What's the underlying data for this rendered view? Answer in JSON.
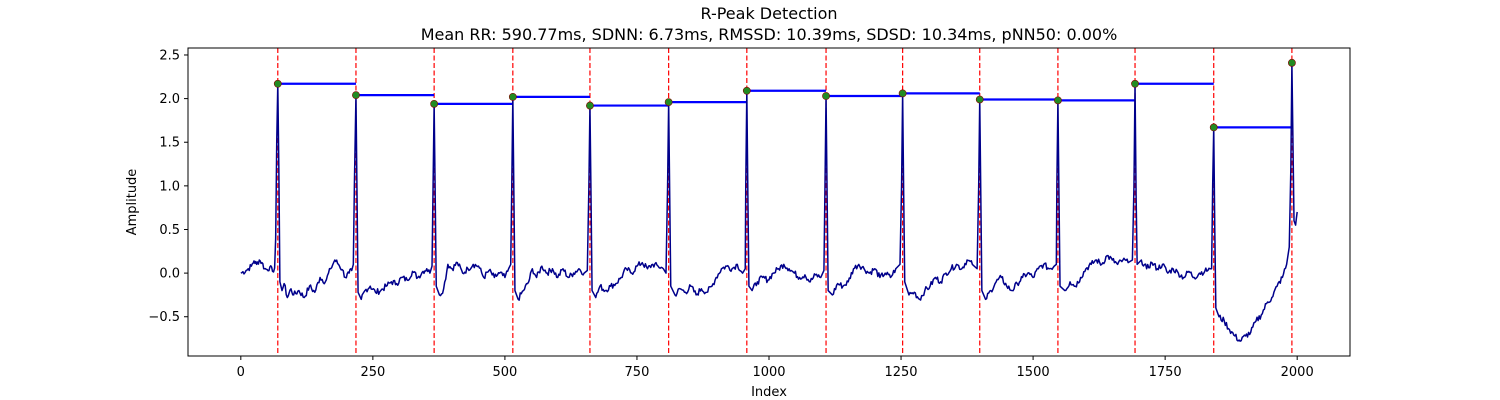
{
  "chart_data": {
    "type": "line",
    "title": "R-Peak Detection",
    "subtitle": "Mean RR: 590.77ms, SDNN: 6.73ms, RMSSD: 10.39ms, SDSD: 10.34ms, pNN50: 0.00%",
    "xlabel": "Index",
    "ylabel": "Amplitude",
    "xlim": [
      -100,
      2100
    ],
    "ylim": [
      -0.95,
      2.58
    ],
    "xticks": [
      0,
      250,
      500,
      750,
      1000,
      1250,
      1500,
      1750,
      2000
    ],
    "yticks": [
      -0.5,
      0.0,
      0.5,
      1.0,
      1.5,
      2.0,
      2.5
    ],
    "xtick_labels": [
      "0",
      "250",
      "500",
      "750",
      "1000",
      "1250",
      "1500",
      "1750",
      "2000"
    ],
    "ytick_labels": [
      "−0.5",
      "0.0",
      "0.5",
      "1.0",
      "1.5",
      "2.0",
      "2.5"
    ],
    "grid": false,
    "signal_color": "#00008b",
    "peak_marker_color": "#228b22",
    "peak_line_color": "#ff0000",
    "rr_line_color": "#0000ff",
    "peaks": [
      {
        "x": 70,
        "y": 2.17
      },
      {
        "x": 218,
        "y": 2.04
      },
      {
        "x": 366,
        "y": 1.94
      },
      {
        "x": 515,
        "y": 2.02
      },
      {
        "x": 661,
        "y": 1.92
      },
      {
        "x": 810,
        "y": 1.96
      },
      {
        "x": 958,
        "y": 2.09
      },
      {
        "x": 1108,
        "y": 2.03
      },
      {
        "x": 1253,
        "y": 2.06
      },
      {
        "x": 1399,
        "y": 1.99
      },
      {
        "x": 1547,
        "y": 1.98
      },
      {
        "x": 1693,
        "y": 2.17
      },
      {
        "x": 1842,
        "y": 1.67
      },
      {
        "x": 1990,
        "y": 2.41
      }
    ],
    "signal_baseline": [
      [
        0,
        0.0
      ],
      [
        10,
        0.03
      ],
      [
        20,
        0.08
      ],
      [
        25,
        0.14
      ],
      [
        30,
        0.1
      ],
      [
        35,
        0.15
      ],
      [
        40,
        0.12
      ],
      [
        45,
        0.05
      ],
      [
        50,
        0.04
      ],
      [
        55,
        0.07
      ],
      [
        60,
        0.02
      ],
      [
        64,
        0.06
      ],
      [
        66,
        0.4
      ],
      [
        68,
        1.5
      ],
      [
        70,
        2.17
      ],
      [
        72,
        1.2
      ],
      [
        74,
        -0.1
      ],
      [
        78,
        -0.2
      ],
      [
        82,
        -0.12
      ],
      [
        88,
        -0.28
      ],
      [
        95,
        -0.18
      ],
      [
        100,
        -0.25
      ],
      [
        110,
        -0.2
      ],
      [
        120,
        -0.28
      ],
      [
        130,
        -0.15
      ],
      [
        140,
        -0.22
      ],
      [
        150,
        -0.05
      ],
      [
        160,
        -0.1
      ],
      [
        170,
        0.05
      ],
      [
        178,
        0.15
      ],
      [
        185,
        0.1
      ],
      [
        192,
        0.04
      ],
      [
        198,
        -0.05
      ],
      [
        205,
        0.0
      ],
      [
        210,
        0.03
      ],
      [
        213,
        0.1
      ],
      [
        215,
        1.0
      ],
      [
        218,
        2.04
      ],
      [
        220,
        0.9
      ],
      [
        222,
        -0.22
      ],
      [
        228,
        -0.3
      ],
      [
        235,
        -0.2
      ],
      [
        245,
        -0.15
      ],
      [
        255,
        -0.22
      ],
      [
        265,
        -0.2
      ],
      [
        275,
        -0.15
      ],
      [
        285,
        -0.1
      ],
      [
        295,
        -0.12
      ],
      [
        305,
        -0.05
      ],
      [
        315,
        -0.08
      ],
      [
        325,
        0.02
      ],
      [
        335,
        -0.05
      ],
      [
        345,
        0.02
      ],
      [
        352,
        0.05
      ],
      [
        358,
        0.0
      ],
      [
        362,
        0.08
      ],
      [
        364,
        1.0
      ],
      [
        366,
        1.94
      ],
      [
        368,
        0.9
      ],
      [
        370,
        -0.15
      ],
      [
        376,
        -0.25
      ],
      [
        384,
        -0.18
      ],
      [
        392,
        0.1
      ],
      [
        400,
        0.05
      ],
      [
        410,
        0.12
      ],
      [
        420,
        0.0
      ],
      [
        430,
        0.05
      ],
      [
        440,
        0.1
      ],
      [
        450,
        0.08
      ],
      [
        460,
        -0.05
      ],
      [
        470,
        0.03
      ],
      [
        480,
        -0.05
      ],
      [
        490,
        0.0
      ],
      [
        500,
        -0.05
      ],
      [
        507,
        0.05
      ],
      [
        511,
        0.1
      ],
      [
        513,
        1.0
      ],
      [
        515,
        2.02
      ],
      [
        517,
        0.9
      ],
      [
        519,
        -0.2
      ],
      [
        525,
        -0.3
      ],
      [
        535,
        -0.2
      ],
      [
        545,
        -0.1
      ],
      [
        552,
        0.05
      ],
      [
        560,
        -0.05
      ],
      [
        570,
        0.08
      ],
      [
        580,
        0.0
      ],
      [
        590,
        0.05
      ],
      [
        600,
        -0.05
      ],
      [
        610,
        0.05
      ],
      [
        620,
        -0.05
      ],
      [
        630,
        0.0
      ],
      [
        640,
        0.05
      ],
      [
        650,
        0.0
      ],
      [
        656,
        0.03
      ],
      [
        659,
        1.0
      ],
      [
        661,
        1.92
      ],
      [
        663,
        0.9
      ],
      [
        665,
        -0.2
      ],
      [
        672,
        -0.28
      ],
      [
        680,
        -0.15
      ],
      [
        690,
        -0.2
      ],
      [
        700,
        -0.15
      ],
      [
        710,
        -0.12
      ],
      [
        720,
        -0.05
      ],
      [
        730,
        0.05
      ],
      [
        740,
        0.0
      ],
      [
        750,
        0.08
      ],
      [
        760,
        0.12
      ],
      [
        770,
        0.05
      ],
      [
        780,
        0.1
      ],
      [
        790,
        0.08
      ],
      [
        800,
        0.05
      ],
      [
        805,
        0.0
      ],
      [
        808,
        1.0
      ],
      [
        810,
        1.96
      ],
      [
        812,
        0.9
      ],
      [
        814,
        -0.15
      ],
      [
        822,
        -0.25
      ],
      [
        832,
        -0.18
      ],
      [
        842,
        -0.22
      ],
      [
        852,
        -0.15
      ],
      [
        862,
        -0.25
      ],
      [
        872,
        -0.18
      ],
      [
        882,
        -0.22
      ],
      [
        892,
        -0.15
      ],
      [
        900,
        -0.05
      ],
      [
        910,
        0.05
      ],
      [
        920,
        0.08
      ],
      [
        930,
        0.05
      ],
      [
        940,
        0.1
      ],
      [
        950,
        0.0
      ],
      [
        955,
        0.05
      ],
      [
        956,
        1.0
      ],
      [
        958,
        2.09
      ],
      [
        960,
        0.9
      ],
      [
        962,
        -0.15
      ],
      [
        968,
        -0.2
      ],
      [
        978,
        -0.1
      ],
      [
        988,
        -0.05
      ],
      [
        998,
        -0.08
      ],
      [
        1008,
        0.0
      ],
      [
        1018,
        0.05
      ],
      [
        1028,
        0.1
      ],
      [
        1038,
        0.05
      ],
      [
        1048,
        0.0
      ],
      [
        1058,
        -0.05
      ],
      [
        1068,
        -0.02
      ],
      [
        1078,
        -0.1
      ],
      [
        1088,
        -0.02
      ],
      [
        1098,
        -0.05
      ],
      [
        1104,
        0.03
      ],
      [
        1106,
        1.0
      ],
      [
        1108,
        2.03
      ],
      [
        1110,
        0.9
      ],
      [
        1112,
        -0.2
      ],
      [
        1120,
        -0.25
      ],
      [
        1130,
        -0.12
      ],
      [
        1140,
        -0.15
      ],
      [
        1150,
        -0.1
      ],
      [
        1160,
        0.05
      ],
      [
        1170,
        0.1
      ],
      [
        1180,
        0.05
      ],
      [
        1190,
        0.0
      ],
      [
        1200,
        0.05
      ],
      [
        1210,
        -0.05
      ],
      [
        1220,
        0.0
      ],
      [
        1230,
        -0.05
      ],
      [
        1240,
        0.05
      ],
      [
        1248,
        0.1
      ],
      [
        1251,
        1.0
      ],
      [
        1253,
        2.06
      ],
      [
        1255,
        0.9
      ],
      [
        1257,
        -0.1
      ],
      [
        1265,
        -0.25
      ],
      [
        1275,
        -0.22
      ],
      [
        1285,
        -0.3
      ],
      [
        1295,
        -0.2
      ],
      [
        1305,
        -0.15
      ],
      [
        1315,
        -0.05
      ],
      [
        1325,
        -0.1
      ],
      [
        1335,
        0.0
      ],
      [
        1345,
        0.05
      ],
      [
        1355,
        0.1
      ],
      [
        1365,
        0.05
      ],
      [
        1375,
        0.15
      ],
      [
        1385,
        0.1
      ],
      [
        1394,
        0.05
      ],
      [
        1397,
        1.0
      ],
      [
        1399,
        1.99
      ],
      [
        1401,
        0.9
      ],
      [
        1403,
        -0.2
      ],
      [
        1410,
        -0.3
      ],
      [
        1420,
        -0.2
      ],
      [
        1430,
        -0.1
      ],
      [
        1440,
        -0.05
      ],
      [
        1450,
        -0.15
      ],
      [
        1460,
        -0.2
      ],
      [
        1470,
        -0.12
      ],
      [
        1480,
        -0.05
      ],
      [
        1490,
        0.0
      ],
      [
        1500,
        -0.05
      ],
      [
        1510,
        0.05
      ],
      [
        1520,
        0.1
      ],
      [
        1530,
        0.05
      ],
      [
        1540,
        0.08
      ],
      [
        1544,
        0.1
      ],
      [
        1545,
        1.0
      ],
      [
        1547,
        1.98
      ],
      [
        1549,
        0.9
      ],
      [
        1551,
        -0.15
      ],
      [
        1560,
        -0.2
      ],
      [
        1570,
        -0.1
      ],
      [
        1580,
        -0.15
      ],
      [
        1590,
        -0.05
      ],
      [
        1600,
        0.05
      ],
      [
        1610,
        0.1
      ],
      [
        1620,
        0.15
      ],
      [
        1630,
        0.1
      ],
      [
        1640,
        0.2
      ],
      [
        1650,
        0.15
      ],
      [
        1660,
        0.1
      ],
      [
        1670,
        0.15
      ],
      [
        1680,
        0.12
      ],
      [
        1688,
        0.15
      ],
      [
        1691,
        1.0
      ],
      [
        1693,
        2.17
      ],
      [
        1695,
        0.9
      ],
      [
        1697,
        0.1
      ],
      [
        1705,
        0.15
      ],
      [
        1715,
        0.05
      ],
      [
        1725,
        0.12
      ],
      [
        1735,
        0.05
      ],
      [
        1745,
        0.1
      ],
      [
        1755,
        0.0
      ],
      [
        1765,
        0.05
      ],
      [
        1775,
        0.0
      ],
      [
        1785,
        -0.05
      ],
      [
        1795,
        0.02
      ],
      [
        1805,
        -0.05
      ],
      [
        1815,
        0.0
      ],
      [
        1825,
        0.02
      ],
      [
        1835,
        0.05
      ],
      [
        1838,
        0.05
      ],
      [
        1840,
        1.0
      ],
      [
        1842,
        1.67
      ],
      [
        1844,
        0.5
      ],
      [
        1846,
        -0.4
      ],
      [
        1852,
        -0.5
      ],
      [
        1862,
        -0.55
      ],
      [
        1872,
        -0.65
      ],
      [
        1882,
        -0.72
      ],
      [
        1892,
        -0.78
      ],
      [
        1902,
        -0.72
      ],
      [
        1912,
        -0.68
      ],
      [
        1922,
        -0.55
      ],
      [
        1932,
        -0.48
      ],
      [
        1942,
        -0.35
      ],
      [
        1952,
        -0.28
      ],
      [
        1962,
        -0.15
      ],
      [
        1972,
        -0.05
      ],
      [
        1980,
        0.1
      ],
      [
        1985,
        0.3
      ],
      [
        1988,
        1.2
      ],
      [
        1990,
        2.41
      ],
      [
        1992,
        1.5
      ],
      [
        1994,
        0.6
      ],
      [
        1997,
        0.55
      ],
      [
        2000,
        0.7
      ]
    ]
  }
}
